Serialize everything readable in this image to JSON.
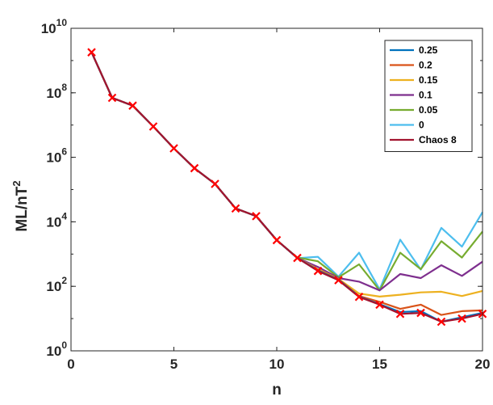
{
  "chart_data": {
    "type": "line",
    "xlabel": "n",
    "ylabel_main": "ML/nT",
    "ylabel_sup": "2",
    "y_scale": "log",
    "xlim": [
      0,
      20
    ],
    "ylim": [
      1,
      10000000000
    ],
    "x_ticks": [
      0,
      5,
      10,
      15,
      20
    ],
    "y_ticks": [
      {
        "value": 1,
        "base": "10",
        "exp": "0"
      },
      {
        "value": 100,
        "base": "10",
        "exp": "2"
      },
      {
        "value": 10000,
        "base": "10",
        "exp": "4"
      },
      {
        "value": 1000000,
        "base": "10",
        "exp": "6"
      },
      {
        "value": 100000000,
        "base": "10",
        "exp": "8"
      },
      {
        "value": 10000000000,
        "base": "10",
        "exp": "10"
      }
    ],
    "legend_position": "top-right",
    "x": [
      1,
      2,
      3,
      4,
      5,
      6,
      7,
      8,
      9,
      10,
      11,
      12,
      13,
      14,
      15,
      16,
      17,
      18,
      19,
      20
    ],
    "series": [
      {
        "name": "0",
        "color": "#4DBEEE",
        "values": [
          1800000000,
          70000000,
          40000000,
          9000000,
          1900000,
          460000,
          150000,
          26000,
          15000,
          2700,
          750,
          820,
          200,
          1100,
          80,
          2800,
          330,
          6500,
          1700,
          20000
        ]
      },
      {
        "name": "0.05",
        "color": "#77AC30",
        "values": [
          1800000000,
          70000000,
          40000000,
          9000000,
          1900000,
          460000,
          150000,
          26000,
          15000,
          2700,
          780,
          600,
          190,
          480,
          75,
          1100,
          340,
          2500,
          780,
          5000
        ]
      },
      {
        "name": "0.1",
        "color": "#7E2F8E",
        "values": [
          1800000000,
          70000000,
          40000000,
          9000000,
          1900000,
          460000,
          150000,
          26000,
          15000,
          2700,
          760,
          400,
          180,
          140,
          75,
          240,
          180,
          450,
          210,
          580
        ]
      },
      {
        "name": "0.15",
        "color": "#EDB120",
        "values": [
          1800000000,
          70000000,
          40000000,
          9000000,
          1900000,
          460000,
          150000,
          26000,
          15000,
          2700,
          760,
          340,
          170,
          60,
          48,
          55,
          65,
          68,
          50,
          72
        ]
      },
      {
        "name": "0.2",
        "color": "#D95319",
        "values": [
          1800000000,
          70000000,
          40000000,
          9000000,
          1900000,
          460000,
          150000,
          26000,
          15000,
          2700,
          760,
          320,
          165,
          50,
          33,
          20,
          27,
          13,
          17,
          18
        ]
      },
      {
        "name": "0.25",
        "color": "#0072BD",
        "values": [
          1800000000,
          70000000,
          40000000,
          9000000,
          1900000,
          460000,
          150000,
          26000,
          15000,
          2700,
          760,
          310,
          160,
          48,
          28,
          16,
          17,
          8,
          11,
          15
        ]
      },
      {
        "name": "Chaos 8",
        "color": "#A2142F",
        "marker": "x",
        "marker_color": "#FF0000",
        "values": [
          1800000000,
          70000000,
          40000000,
          9000000,
          1900000,
          460000,
          150000,
          26000,
          15000,
          2700,
          760,
          300,
          155,
          47,
          27,
          14,
          15,
          8,
          10,
          14
        ]
      }
    ]
  }
}
